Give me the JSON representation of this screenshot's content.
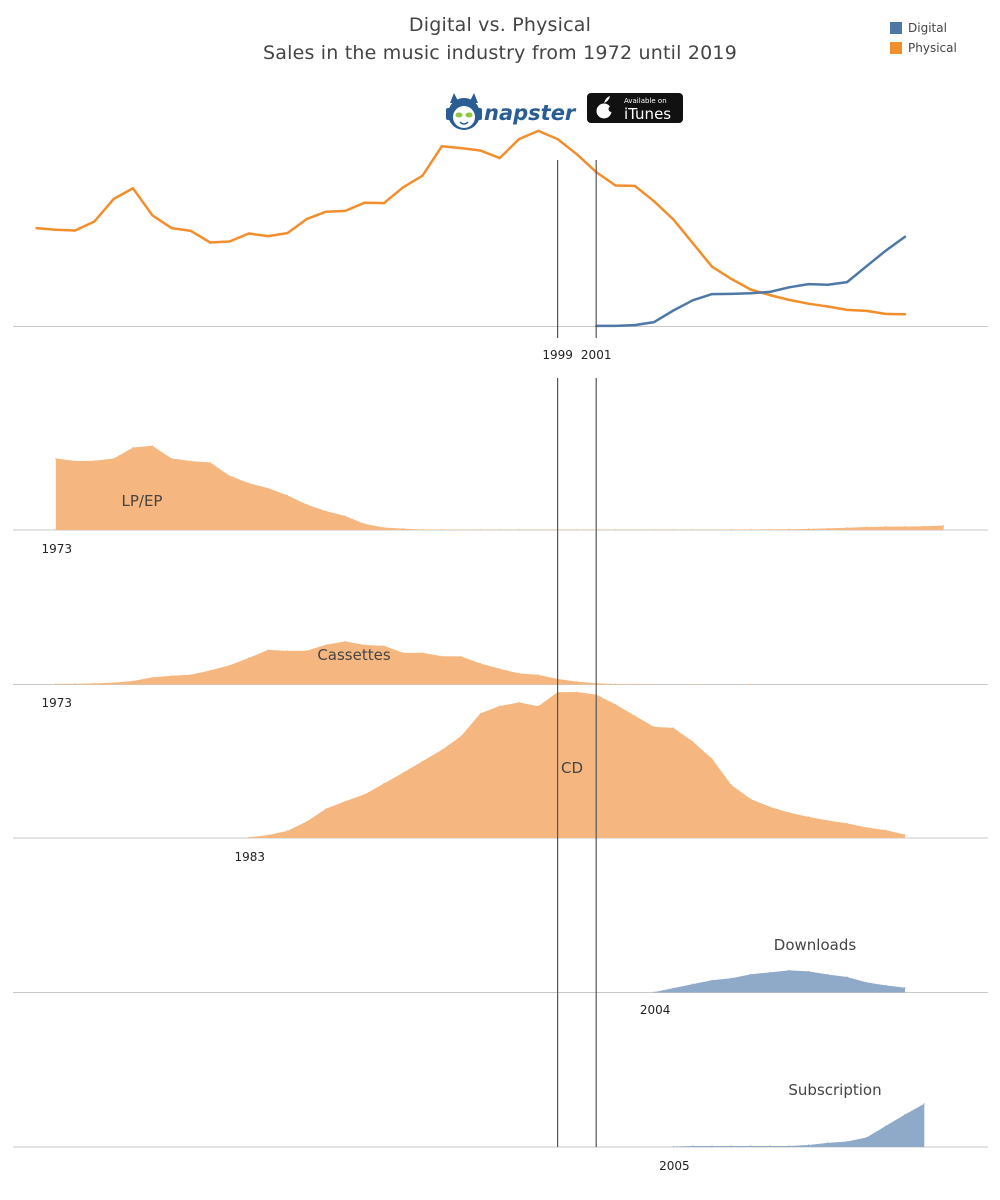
{
  "header": {
    "title": "Digital vs. Physical",
    "subtitle": "Sales in the music industry from 1972 until 2019"
  },
  "legend": [
    {
      "name": "Digital",
      "color": "#4e79a7"
    },
    {
      "name": "Physical",
      "color": "#f28e2b"
    }
  ],
  "logos": {
    "napster": {
      "text": "napster",
      "icon": "napster-cat-icon"
    },
    "itunes": {
      "small": "Available on",
      "big": "iTunes",
      "icon": "apple-icon"
    }
  },
  "chart_data": [
    {
      "type": "line",
      "title": "",
      "x_start": 1972,
      "x_end": 2019,
      "reference_lines": [
        1999,
        2001
      ],
      "reference_labels": [
        "1999",
        "2001"
      ],
      "ylim": [
        0,
        1
      ],
      "series": [
        {
          "name": "Physical",
          "color": "#f28e2b",
          "x_start": 1972,
          "values": [
            0.492,
            0.484,
            0.48,
            0.525,
            0.638,
            0.691,
            0.556,
            0.492,
            0.478,
            0.42,
            0.425,
            0.465,
            0.452,
            0.467,
            0.537,
            0.574,
            0.578,
            0.619,
            0.617,
            0.696,
            0.754,
            0.901,
            0.892,
            0.88,
            0.842,
            0.937,
            0.978,
            0.937,
            0.861,
            0.772,
            0.705,
            0.703,
            0.626,
            0.535,
            0.417,
            0.299,
            0.238,
            0.185,
            0.157,
            0.133,
            0.114,
            0.1,
            0.083,
            0.078,
            0.063,
            0.061
          ]
        },
        {
          "name": "Digital",
          "color": "#4e79a7",
          "x_start": 2001,
          "values": [
            0.003,
            0.003,
            0.007,
            0.022,
            0.08,
            0.131,
            0.162,
            0.163,
            0.166,
            0.173,
            0.196,
            0.212,
            0.209,
            0.222,
            0.301,
            0.379,
            0.449
          ]
        }
      ]
    },
    {
      "type": "area",
      "name": "LP/EP",
      "color": "#f5b77f",
      "x_start": 1973,
      "start_label": "1973",
      "values": [
        0.638,
        0.616,
        0.618,
        0.638,
        0.737,
        0.752,
        0.638,
        0.615,
        0.603,
        0.485,
        0.419,
        0.373,
        0.309,
        0.228,
        0.168,
        0.125,
        0.055,
        0.022,
        0.012,
        0.005,
        0.004,
        0.003,
        0.003,
        0.003,
        0.003,
        0.003,
        0.003,
        0.003,
        0.003,
        0.003,
        0.003,
        0.003,
        0.003,
        0.003,
        0.003,
        0.004,
        0.005,
        0.006,
        0.007,
        0.01,
        0.014,
        0.02,
        0.027,
        0.03,
        0.031,
        0.033,
        0.039
      ]
    },
    {
      "type": "area",
      "name": "Cassettes",
      "color": "#f5b77f",
      "x_start": 1973,
      "start_label": "1973",
      "values": [
        0.01,
        0.011,
        0.016,
        0.028,
        0.052,
        0.104,
        0.129,
        0.143,
        0.207,
        0.281,
        0.391,
        0.51,
        0.494,
        0.497,
        0.584,
        0.635,
        0.581,
        0.569,
        0.465,
        0.466,
        0.416,
        0.414,
        0.309,
        0.231,
        0.164,
        0.141,
        0.08,
        0.042,
        0.018,
        0.007,
        0.003,
        0.001,
        0.0,
        0.0,
        0.0,
        0.0,
        0.0
      ]
    },
    {
      "type": "area",
      "name": "CD",
      "color": "#f5b77f",
      "x_start": 1983,
      "start_label": "1983",
      "values": [
        0.004,
        0.02,
        0.049,
        0.113,
        0.2,
        0.252,
        0.299,
        0.373,
        0.448,
        0.526,
        0.604,
        0.698,
        0.854,
        0.904,
        0.929,
        0.902,
        0.998,
        1.0,
        0.982,
        0.915,
        0.837,
        0.761,
        0.754,
        0.661,
        0.544,
        0.364,
        0.267,
        0.213,
        0.174,
        0.145,
        0.12,
        0.1,
        0.072,
        0.054,
        0.022
      ]
    },
    {
      "type": "area",
      "name": "Downloads",
      "color": "#8fa9c8",
      "x_start": 2004,
      "start_label": "2004",
      "values": [
        0.015,
        0.189,
        0.364,
        0.531,
        0.618,
        0.79,
        0.876,
        0.962,
        0.916,
        0.784,
        0.675,
        0.44,
        0.312,
        0.208
      ]
    },
    {
      "type": "area",
      "name": "Subscription",
      "color": "#8fa9c8",
      "x_start": 2005,
      "start_label": "2005",
      "values": [
        0.011,
        0.023,
        0.023,
        0.023,
        0.023,
        0.023,
        0.023,
        0.045,
        0.092,
        0.121,
        0.21,
        0.468,
        0.722,
        0.96
      ]
    }
  ]
}
